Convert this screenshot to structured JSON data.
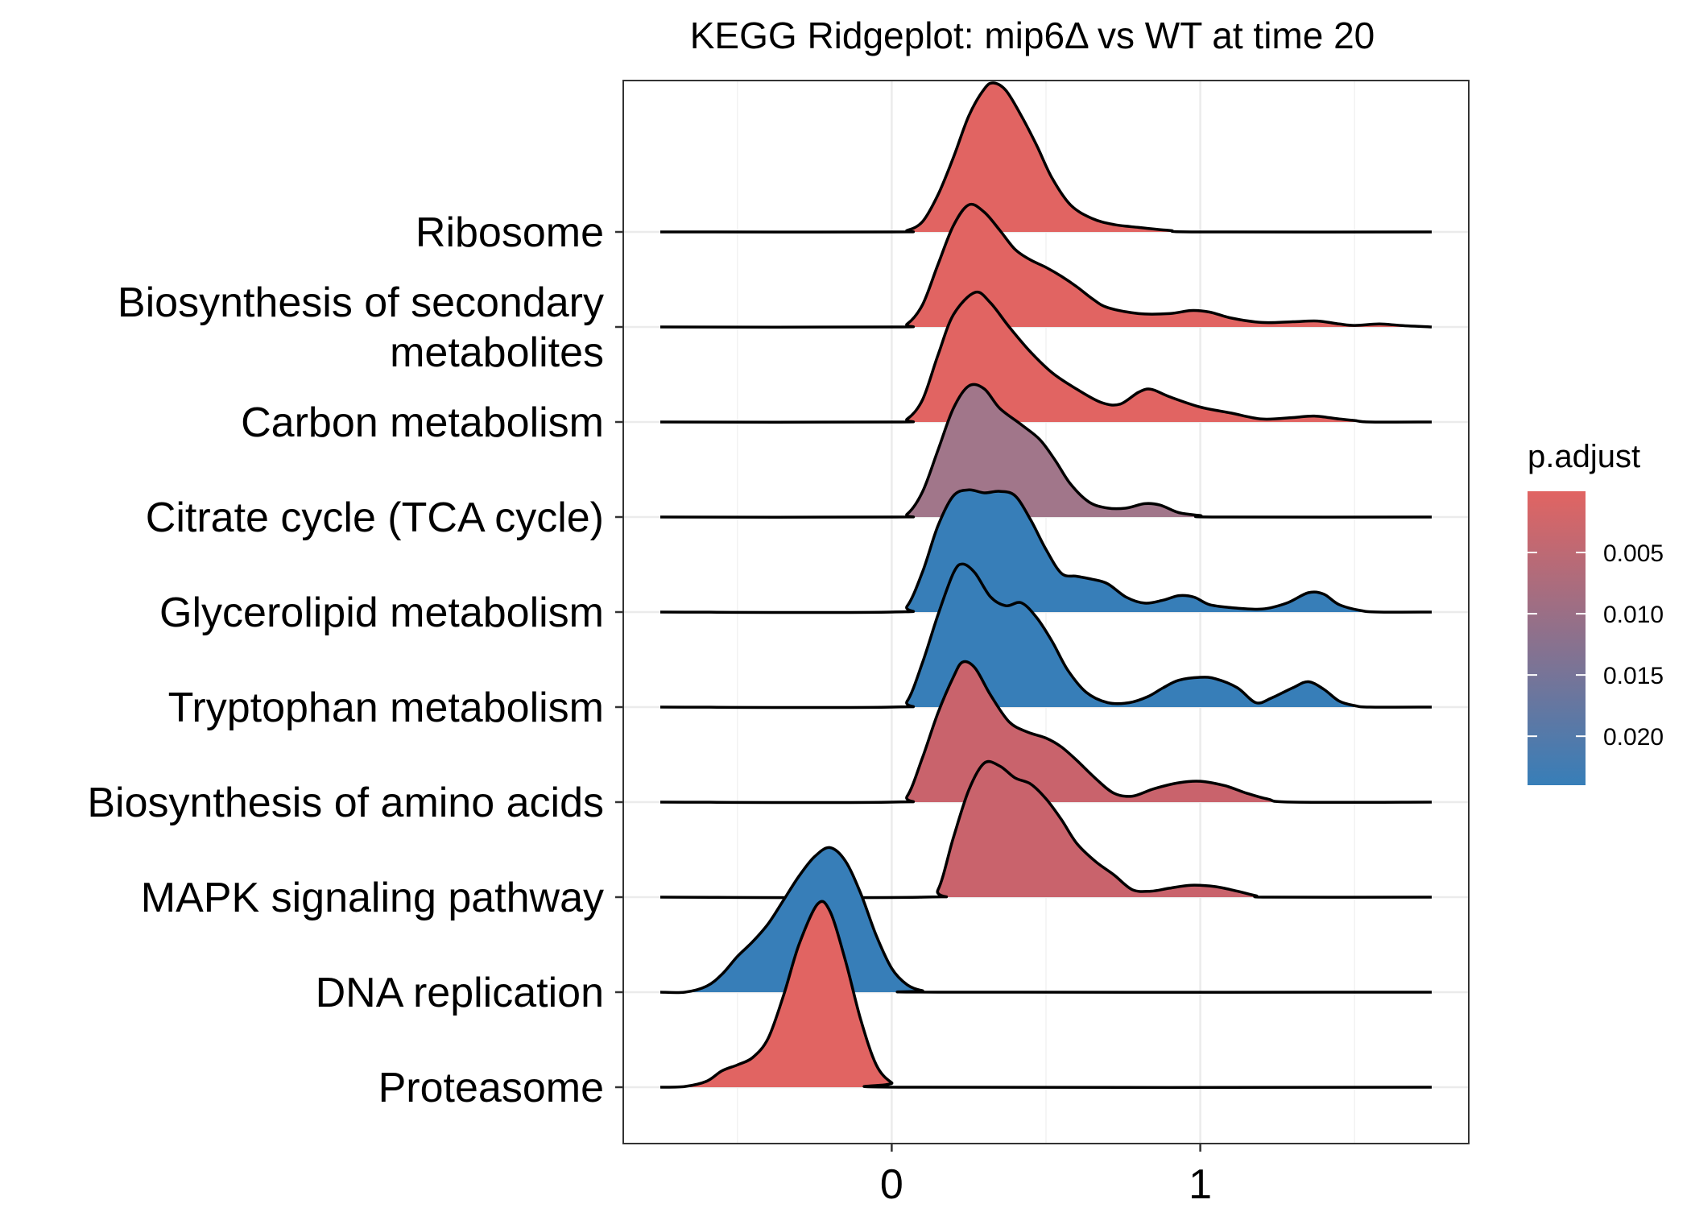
{
  "chart_data": {
    "type": "ridgeline",
    "title": "KEGG Ridgeplot: mip6Δ vs WT at time 20",
    "xlabel": "",
    "ylabel": "",
    "xlim": [
      -0.87,
      1.87
    ],
    "x_ticks": [
      "0",
      "1"
    ],
    "x_tick_values": [
      0,
      1
    ],
    "grid": true,
    "legend": {
      "title": "p.adjust",
      "placement": "right",
      "gradient": [
        "#E16462",
        "#377EB8"
      ],
      "range": [
        0.0,
        0.024
      ],
      "labels": [
        "0.005",
        "0.010",
        "0.015",
        "0.020"
      ],
      "label_values": [
        0.005,
        0.01,
        0.015,
        0.02
      ]
    },
    "series": [
      {
        "name": "Ribosome",
        "p_adjust": 0.0,
        "fill": "#E16462",
        "points": [
          [
            -0.75,
            0
          ],
          [
            0,
            0
          ],
          [
            0.05,
            0.01
          ],
          [
            0.1,
            0.07
          ],
          [
            0.15,
            0.25
          ],
          [
            0.2,
            0.5
          ],
          [
            0.25,
            0.78
          ],
          [
            0.3,
            0.96
          ],
          [
            0.33,
            1.0
          ],
          [
            0.37,
            0.95
          ],
          [
            0.42,
            0.78
          ],
          [
            0.47,
            0.58
          ],
          [
            0.52,
            0.36
          ],
          [
            0.58,
            0.18
          ],
          [
            0.65,
            0.09
          ],
          [
            0.72,
            0.05
          ],
          [
            0.8,
            0.03
          ],
          [
            0.9,
            0.01
          ],
          [
            1.0,
            0
          ],
          [
            1.75,
            0
          ]
        ]
      },
      {
        "name": "Biosynthesis of secondary metabolites",
        "p_adjust": 0.0,
        "fill": "#E16462",
        "points": [
          [
            -0.75,
            0
          ],
          [
            0,
            0
          ],
          [
            0.05,
            0.02
          ],
          [
            0.1,
            0.15
          ],
          [
            0.15,
            0.42
          ],
          [
            0.2,
            0.68
          ],
          [
            0.25,
            0.82
          ],
          [
            0.3,
            0.77
          ],
          [
            0.35,
            0.65
          ],
          [
            0.4,
            0.52
          ],
          [
            0.45,
            0.45
          ],
          [
            0.5,
            0.4
          ],
          [
            0.55,
            0.34
          ],
          [
            0.6,
            0.27
          ],
          [
            0.65,
            0.19
          ],
          [
            0.7,
            0.13
          ],
          [
            0.8,
            0.09
          ],
          [
            0.9,
            0.09
          ],
          [
            0.97,
            0.11
          ],
          [
            1.03,
            0.1
          ],
          [
            1.1,
            0.06
          ],
          [
            1.2,
            0.03
          ],
          [
            1.3,
            0.035
          ],
          [
            1.38,
            0.04
          ],
          [
            1.45,
            0.02
          ],
          [
            1.5,
            0.01
          ],
          [
            1.58,
            0.02
          ],
          [
            1.65,
            0.01
          ],
          [
            1.75,
            0
          ]
        ]
      },
      {
        "name": "Carbon metabolism",
        "p_adjust": 0.0,
        "fill": "#E16462",
        "points": [
          [
            -0.75,
            0
          ],
          [
            0,
            0
          ],
          [
            0.05,
            0.02
          ],
          [
            0.1,
            0.15
          ],
          [
            0.15,
            0.45
          ],
          [
            0.2,
            0.72
          ],
          [
            0.27,
            0.87
          ],
          [
            0.32,
            0.8
          ],
          [
            0.38,
            0.64
          ],
          [
            0.45,
            0.47
          ],
          [
            0.52,
            0.33
          ],
          [
            0.6,
            0.22
          ],
          [
            0.68,
            0.13
          ],
          [
            0.74,
            0.12
          ],
          [
            0.8,
            0.2
          ],
          [
            0.84,
            0.22
          ],
          [
            0.9,
            0.17
          ],
          [
            1.0,
            0.1
          ],
          [
            1.1,
            0.06
          ],
          [
            1.2,
            0.02
          ],
          [
            1.3,
            0.03
          ],
          [
            1.37,
            0.04
          ],
          [
            1.45,
            0.02
          ],
          [
            1.5,
            0.01
          ],
          [
            1.55,
            0
          ],
          [
            1.75,
            0
          ]
        ]
      },
      {
        "name": "Citrate cycle (TCA cycle)",
        "p_adjust": 0.012,
        "fill": "#A1768A",
        "points": [
          [
            -0.75,
            0
          ],
          [
            0,
            0
          ],
          [
            0.05,
            0.02
          ],
          [
            0.1,
            0.17
          ],
          [
            0.15,
            0.45
          ],
          [
            0.2,
            0.73
          ],
          [
            0.25,
            0.88
          ],
          [
            0.3,
            0.86
          ],
          [
            0.35,
            0.73
          ],
          [
            0.42,
            0.62
          ],
          [
            0.48,
            0.52
          ],
          [
            0.53,
            0.38
          ],
          [
            0.58,
            0.22
          ],
          [
            0.64,
            0.1
          ],
          [
            0.7,
            0.06
          ],
          [
            0.76,
            0.06
          ],
          [
            0.82,
            0.09
          ],
          [
            0.87,
            0.08
          ],
          [
            0.93,
            0.03
          ],
          [
            1.0,
            0.01
          ],
          [
            1.05,
            0
          ],
          [
            1.75,
            0
          ]
        ]
      },
      {
        "name": "Glycerolipid metabolism",
        "p_adjust": 0.024,
        "fill": "#377EB8",
        "points": [
          [
            -0.75,
            0
          ],
          [
            0,
            0
          ],
          [
            0.05,
            0.04
          ],
          [
            0.1,
            0.27
          ],
          [
            0.15,
            0.58
          ],
          [
            0.2,
            0.78
          ],
          [
            0.25,
            0.82
          ],
          [
            0.3,
            0.8
          ],
          [
            0.35,
            0.81
          ],
          [
            0.4,
            0.78
          ],
          [
            0.45,
            0.62
          ],
          [
            0.5,
            0.42
          ],
          [
            0.55,
            0.26
          ],
          [
            0.6,
            0.24
          ],
          [
            0.65,
            0.22
          ],
          [
            0.7,
            0.19
          ],
          [
            0.76,
            0.1
          ],
          [
            0.82,
            0.06
          ],
          [
            0.88,
            0.08
          ],
          [
            0.93,
            0.11
          ],
          [
            0.98,
            0.1
          ],
          [
            1.03,
            0.05
          ],
          [
            1.1,
            0.03
          ],
          [
            1.2,
            0.02
          ],
          [
            1.28,
            0.06
          ],
          [
            1.35,
            0.13
          ],
          [
            1.4,
            0.12
          ],
          [
            1.45,
            0.05
          ],
          [
            1.52,
            0.01
          ],
          [
            1.58,
            0
          ],
          [
            1.75,
            0
          ]
        ]
      },
      {
        "name": "Tryptophan metabolism",
        "p_adjust": 0.024,
        "fill": "#377EB8",
        "points": [
          [
            -0.75,
            0
          ],
          [
            0,
            0
          ],
          [
            0.05,
            0.04
          ],
          [
            0.1,
            0.3
          ],
          [
            0.15,
            0.62
          ],
          [
            0.2,
            0.9
          ],
          [
            0.23,
            0.96
          ],
          [
            0.27,
            0.9
          ],
          [
            0.32,
            0.74
          ],
          [
            0.37,
            0.68
          ],
          [
            0.42,
            0.7
          ],
          [
            0.47,
            0.6
          ],
          [
            0.52,
            0.44
          ],
          [
            0.57,
            0.25
          ],
          [
            0.63,
            0.1
          ],
          [
            0.7,
            0.03
          ],
          [
            0.77,
            0.03
          ],
          [
            0.83,
            0.07
          ],
          [
            0.88,
            0.13
          ],
          [
            0.93,
            0.18
          ],
          [
            1.0,
            0.2
          ],
          [
            1.05,
            0.19
          ],
          [
            1.12,
            0.13
          ],
          [
            1.18,
            0.03
          ],
          [
            1.23,
            0.06
          ],
          [
            1.3,
            0.13
          ],
          [
            1.35,
            0.17
          ],
          [
            1.4,
            0.12
          ],
          [
            1.45,
            0.04
          ],
          [
            1.5,
            0.01
          ],
          [
            1.55,
            0
          ],
          [
            1.75,
            0
          ]
        ]
      },
      {
        "name": "Biosynthesis of amino acids",
        "p_adjust": 0.006,
        "fill": "#C9636C",
        "points": [
          [
            -0.75,
            0
          ],
          [
            0,
            0
          ],
          [
            0.05,
            0.04
          ],
          [
            0.1,
            0.3
          ],
          [
            0.15,
            0.6
          ],
          [
            0.2,
            0.84
          ],
          [
            0.23,
            0.94
          ],
          [
            0.27,
            0.9
          ],
          [
            0.32,
            0.72
          ],
          [
            0.38,
            0.54
          ],
          [
            0.44,
            0.47
          ],
          [
            0.5,
            0.43
          ],
          [
            0.55,
            0.37
          ],
          [
            0.6,
            0.28
          ],
          [
            0.66,
            0.16
          ],
          [
            0.72,
            0.06
          ],
          [
            0.78,
            0.04
          ],
          [
            0.85,
            0.09
          ],
          [
            0.93,
            0.13
          ],
          [
            1.0,
            0.14
          ],
          [
            1.08,
            0.11
          ],
          [
            1.15,
            0.06
          ],
          [
            1.22,
            0.02
          ],
          [
            1.3,
            0
          ],
          [
            1.75,
            0
          ]
        ]
      },
      {
        "name": "MAPK signaling pathway",
        "p_adjust": 0.006,
        "fill": "#C9636C",
        "points": [
          [
            -0.75,
            0
          ],
          [
            0.1,
            0
          ],
          [
            0.15,
            0.05
          ],
          [
            0.2,
            0.4
          ],
          [
            0.25,
            0.72
          ],
          [
            0.3,
            0.9
          ],
          [
            0.35,
            0.88
          ],
          [
            0.4,
            0.8
          ],
          [
            0.45,
            0.76
          ],
          [
            0.5,
            0.66
          ],
          [
            0.55,
            0.52
          ],
          [
            0.6,
            0.36
          ],
          [
            0.66,
            0.24
          ],
          [
            0.72,
            0.15
          ],
          [
            0.78,
            0.05
          ],
          [
            0.84,
            0.04
          ],
          [
            0.9,
            0.06
          ],
          [
            0.97,
            0.08
          ],
          [
            1.05,
            0.07
          ],
          [
            1.12,
            0.04
          ],
          [
            1.18,
            0.01
          ],
          [
            1.23,
            0
          ],
          [
            1.75,
            0
          ]
        ]
      },
      {
        "name": "DNA replication",
        "p_adjust": 0.024,
        "fill": "#377EB8",
        "points": [
          [
            -0.75,
            0
          ],
          [
            -0.67,
            0
          ],
          [
            -0.6,
            0.04
          ],
          [
            -0.55,
            0.12
          ],
          [
            -0.5,
            0.24
          ],
          [
            -0.45,
            0.34
          ],
          [
            -0.4,
            0.46
          ],
          [
            -0.35,
            0.62
          ],
          [
            -0.3,
            0.78
          ],
          [
            -0.25,
            0.91
          ],
          [
            -0.2,
            0.97
          ],
          [
            -0.15,
            0.88
          ],
          [
            -0.1,
            0.66
          ],
          [
            -0.05,
            0.38
          ],
          [
            0.0,
            0.16
          ],
          [
            0.05,
            0.05
          ],
          [
            0.1,
            0.01
          ],
          [
            0.15,
            0
          ],
          [
            1.75,
            0
          ]
        ]
      },
      {
        "name": "Proteasome",
        "p_adjust": 0.0,
        "fill": "#E16462",
        "points": [
          [
            -0.75,
            0
          ],
          [
            -0.67,
            0.005
          ],
          [
            -0.6,
            0.04
          ],
          [
            -0.55,
            0.11
          ],
          [
            -0.5,
            0.15
          ],
          [
            -0.45,
            0.2
          ],
          [
            -0.4,
            0.33
          ],
          [
            -0.35,
            0.62
          ],
          [
            -0.3,
            0.96
          ],
          [
            -0.24,
            1.23
          ],
          [
            -0.2,
            1.18
          ],
          [
            -0.15,
            0.85
          ],
          [
            -0.1,
            0.45
          ],
          [
            -0.05,
            0.15
          ],
          [
            0.0,
            0.03
          ],
          [
            0.05,
            0.0
          ],
          [
            1.75,
            0
          ]
        ]
      }
    ]
  }
}
